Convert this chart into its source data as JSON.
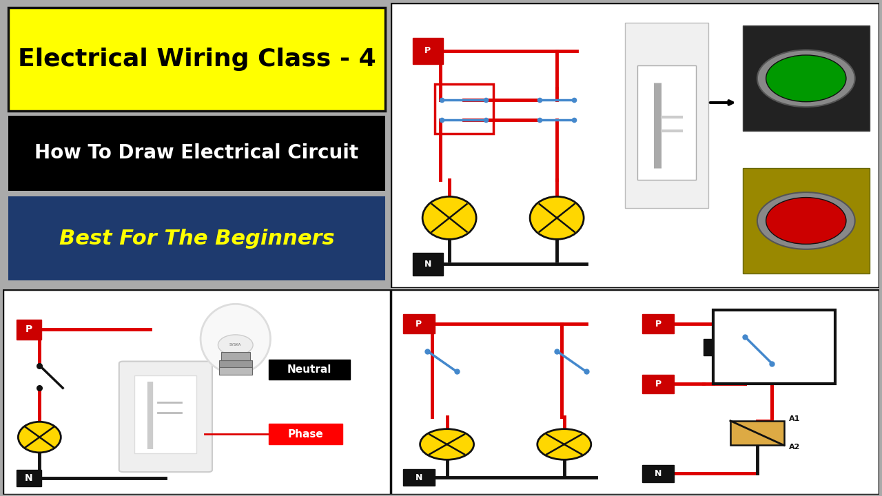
{
  "title1": "Electrical Wiring Class - 4",
  "title2": "How To Draw Electrical Circuit",
  "title3": "Best For The Beginners",
  "title1_bg": "#FFFF00",
  "title1_color": "#000000",
  "title2_bg": "#000000",
  "title2_color": "#FFFFFF",
  "title3_bg": "#1e3a6e",
  "title3_color": "#FFFF00",
  "wire_red": "#DD0000",
  "wire_black": "#111111",
  "bulb_fill": "#FFD700",
  "switch_blue": "#4488CC",
  "bg_white": "#FFFFFF",
  "bg_outer": "#AAAAAA",
  "border": "#111111",
  "p_color": "#CC0000",
  "n_color": "#111111",
  "neutral_bg": "#000000",
  "phase_bg": "#CC0000",
  "green_btn": "#009900",
  "red_btn": "#CC0000",
  "coil_color": "#DDAA44",
  "relay_border": "#111111"
}
